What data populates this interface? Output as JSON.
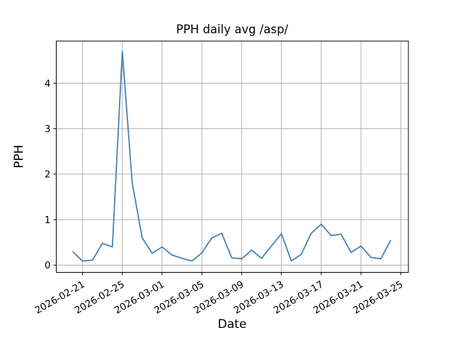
{
  "chart_data": {
    "type": "line",
    "title": "PPH daily avg /asp/",
    "xlabel": "Date",
    "ylabel": "PPH",
    "x": [
      "2026-02-20",
      "2026-02-21",
      "2026-02-22",
      "2026-02-23",
      "2026-02-24",
      "2026-02-25",
      "2026-02-26",
      "2026-02-27",
      "2026-02-28",
      "2026-03-01",
      "2026-03-02",
      "2026-03-03",
      "2026-03-04",
      "2026-03-05",
      "2026-03-06",
      "2026-03-07",
      "2026-03-08",
      "2026-03-09",
      "2026-03-10",
      "2026-03-11",
      "2026-03-12",
      "2026-03-13",
      "2026-03-14",
      "2026-03-15",
      "2026-03-16",
      "2026-03-17",
      "2026-03-18",
      "2026-03-19",
      "2026-03-20",
      "2026-03-21",
      "2026-03-22",
      "2026-03-23",
      "2026-03-24"
    ],
    "values": [
      0.3,
      0.09,
      0.11,
      0.48,
      0.4,
      4.7,
      1.8,
      0.6,
      0.26,
      0.4,
      0.22,
      0.15,
      0.09,
      0.27,
      0.6,
      0.7,
      0.16,
      0.14,
      0.33,
      0.15,
      0.42,
      0.69,
      0.09,
      0.24,
      0.7,
      0.9,
      0.65,
      0.68,
      0.28,
      0.42,
      0.17,
      0.14,
      0.55
    ],
    "xticks": [
      "2026-02-21",
      "2026-02-25",
      "2026-03-01",
      "2026-03-05",
      "2026-03-09",
      "2026-03-13",
      "2026-03-17",
      "2026-03-21",
      "2026-03-25"
    ],
    "yticks": [
      0,
      1,
      2,
      3,
      4
    ],
    "ylim": [
      -0.159,
      4.926
    ],
    "grid": true,
    "legend": "none",
    "line_color": "#4682b4",
    "grid_color": "#b0b0b0",
    "spine_color": "#000000"
  }
}
